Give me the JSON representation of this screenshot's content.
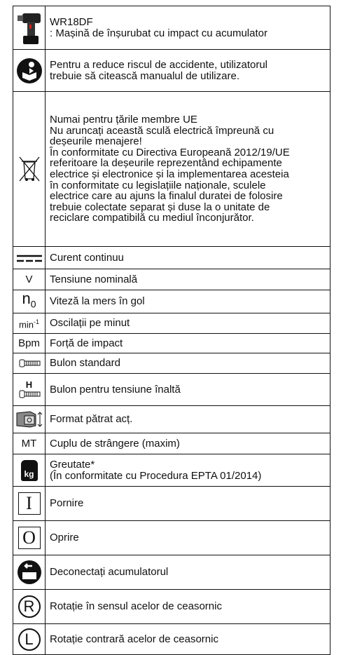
{
  "rows": [
    {
      "text": [
        "WR18DF",
        ": Mașină de înșurubat cu impact cu acumulator"
      ]
    },
    {
      "text": [
        "Pentru a reduce riscul de accidente, utilizatorul",
        "trebuie să citească manualul de utilizare."
      ]
    },
    {
      "text": [
        "Numai pentru țările membre UE",
        "Nu aruncați această sculă electrică împreună cu",
        "deșeurile menajere!",
        "În conformitate cu Directiva Europeană 2012/19/UE",
        "referitoare la deșeurile reprezentând echipamente",
        "electrice și electronice și la implementarea acesteia",
        "în conformitate cu legislațiile naționale, sculele",
        "electrice care au ajuns la finalul duratei de folosire",
        "trebuie colectate separat și duse la o unitate de",
        "reciclare compatibilă cu mediul înconjurător."
      ]
    },
    {
      "text": [
        "Curent continuu"
      ]
    },
    {
      "symbol": "V",
      "text": [
        "Tensiune nominală"
      ]
    },
    {
      "symbol": "n",
      "symbol_sub": "0",
      "text": [
        "Viteză la mers în gol"
      ]
    },
    {
      "symbol": "min",
      "symbol_sup": "-1",
      "text": [
        "Oscilații pe minut"
      ]
    },
    {
      "symbol": "Bpm",
      "text": [
        "Forță de impact"
      ]
    },
    {
      "text": [
        "Bulon standard"
      ]
    },
    {
      "symbol": "H",
      "text": [
        "Bulon pentru tensiune înaltă"
      ]
    },
    {
      "text": [
        "Format pătrat acț."
      ]
    },
    {
      "symbol": "MT",
      "text": [
        "Cuplu de strângere (maxim)"
      ]
    },
    {
      "symbol": "kg",
      "text": [
        "Greutate*",
        "(În conformitate cu Procedura EPTA 01/2014)"
      ]
    },
    {
      "symbol": "I",
      "text": [
        "Pornire"
      ]
    },
    {
      "symbol": "O",
      "text": [
        "Oprire"
      ]
    },
    {
      "text": [
        "Deconectați acumulatorul"
      ]
    },
    {
      "symbol": "R",
      "text": [
        "Rotație în sensul acelor de ceasornic"
      ]
    },
    {
      "symbol": "L",
      "text": [
        "Rotație contrară acelor de ceasornic"
      ]
    }
  ]
}
